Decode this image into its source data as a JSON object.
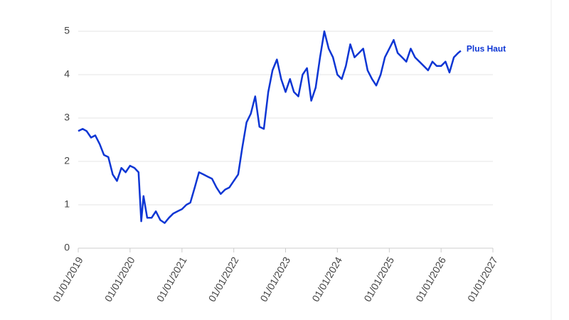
{
  "chart_data": {
    "type": "line",
    "x": [
      "2019-01-01",
      "2019-02-01",
      "2019-03-01",
      "2019-04-01",
      "2019-05-01",
      "2019-06-01",
      "2019-07-01",
      "2019-08-01",
      "2019-09-01",
      "2019-10-01",
      "2019-11-01",
      "2019-12-01",
      "2020-01-01",
      "2020-02-01",
      "2020-03-01",
      "2020-03-20",
      "2020-04-05",
      "2020-05-01",
      "2020-06-01",
      "2020-07-01",
      "2020-08-01",
      "2020-09-01",
      "2020-10-01",
      "2020-11-01",
      "2020-12-01",
      "2021-01-01",
      "2021-02-01",
      "2021-03-01",
      "2021-04-01",
      "2021-05-01",
      "2021-06-01",
      "2021-07-01",
      "2021-08-01",
      "2021-09-01",
      "2021-10-01",
      "2021-11-01",
      "2021-12-01",
      "2022-01-01",
      "2022-02-01",
      "2022-03-01",
      "2022-04-01",
      "2022-05-01",
      "2022-06-01",
      "2022-07-01",
      "2022-08-01",
      "2022-09-01",
      "2022-10-01",
      "2022-11-01",
      "2022-12-01",
      "2023-01-01",
      "2023-02-01",
      "2023-03-01",
      "2023-04-01",
      "2023-05-01",
      "2023-06-01",
      "2023-07-01",
      "2023-08-01",
      "2023-09-01",
      "2023-10-01",
      "2023-11-01",
      "2023-12-01",
      "2024-01-01",
      "2024-02-01",
      "2024-03-01",
      "2024-04-01",
      "2024-05-01",
      "2024-06-01",
      "2024-07-01",
      "2024-08-01",
      "2024-09-01",
      "2024-10-01",
      "2024-11-01",
      "2024-12-01",
      "2025-01-01",
      "2025-02-01",
      "2025-03-01",
      "2025-04-01",
      "2025-05-01",
      "2025-06-01",
      "2025-07-01",
      "2025-08-01",
      "2025-09-01",
      "2025-10-01",
      "2025-11-01",
      "2025-12-01",
      "2026-01-01",
      "2026-02-01",
      "2026-03-01",
      "2026-04-01",
      "2026-05-01",
      "2026-05-20"
    ],
    "series": [
      {
        "name": "Plus Haut",
        "color": "#0d36d4",
        "values": [
          2.7,
          2.75,
          2.7,
          2.55,
          2.6,
          2.4,
          2.15,
          2.1,
          1.7,
          1.55,
          1.85,
          1.75,
          1.9,
          1.85,
          1.75,
          0.62,
          1.2,
          0.7,
          0.7,
          0.85,
          0.65,
          0.58,
          0.7,
          0.8,
          0.85,
          0.9,
          1.0,
          1.05,
          1.4,
          1.75,
          1.7,
          1.65,
          1.6,
          1.4,
          1.25,
          1.35,
          1.4,
          1.55,
          1.7,
          2.3,
          2.9,
          3.1,
          3.5,
          2.8,
          2.75,
          3.6,
          4.1,
          4.35,
          3.9,
          3.6,
          3.9,
          3.6,
          3.5,
          4.0,
          4.15,
          3.4,
          3.7,
          4.4,
          5.0,
          4.6,
          4.4,
          4.0,
          3.9,
          4.2,
          4.7,
          4.4,
          4.5,
          4.6,
          4.1,
          3.9,
          3.75,
          4.0,
          4.4,
          4.6,
          4.8,
          4.5,
          4.4,
          4.3,
          4.6,
          4.4,
          4.3,
          4.2,
          4.1,
          4.3,
          4.2,
          4.2,
          4.3,
          4.05,
          4.4,
          4.5,
          4.55
        ]
      }
    ],
    "xlim": [
      "2019-01-01",
      "2027-01-01"
    ],
    "xticks": [
      {
        "value": "2019-01-01",
        "label": "01/01/2019"
      },
      {
        "value": "2020-01-01",
        "label": "01/01/2020"
      },
      {
        "value": "2021-01-01",
        "label": "01/01/2021"
      },
      {
        "value": "2022-01-01",
        "label": "01/01/2022"
      },
      {
        "value": "2023-01-01",
        "label": "01/01/2023"
      },
      {
        "value": "2024-01-01",
        "label": "01/01/2024"
      },
      {
        "value": "2025-01-01",
        "label": "01/01/2025"
      },
      {
        "value": "2026-01-01",
        "label": "01/01/2026"
      },
      {
        "value": "2027-01-01",
        "label": "01/01/2027"
      }
    ],
    "ylim": [
      0,
      5.5
    ],
    "yticks": [
      0,
      1,
      2,
      3,
      4,
      5
    ],
    "grid": true
  }
}
